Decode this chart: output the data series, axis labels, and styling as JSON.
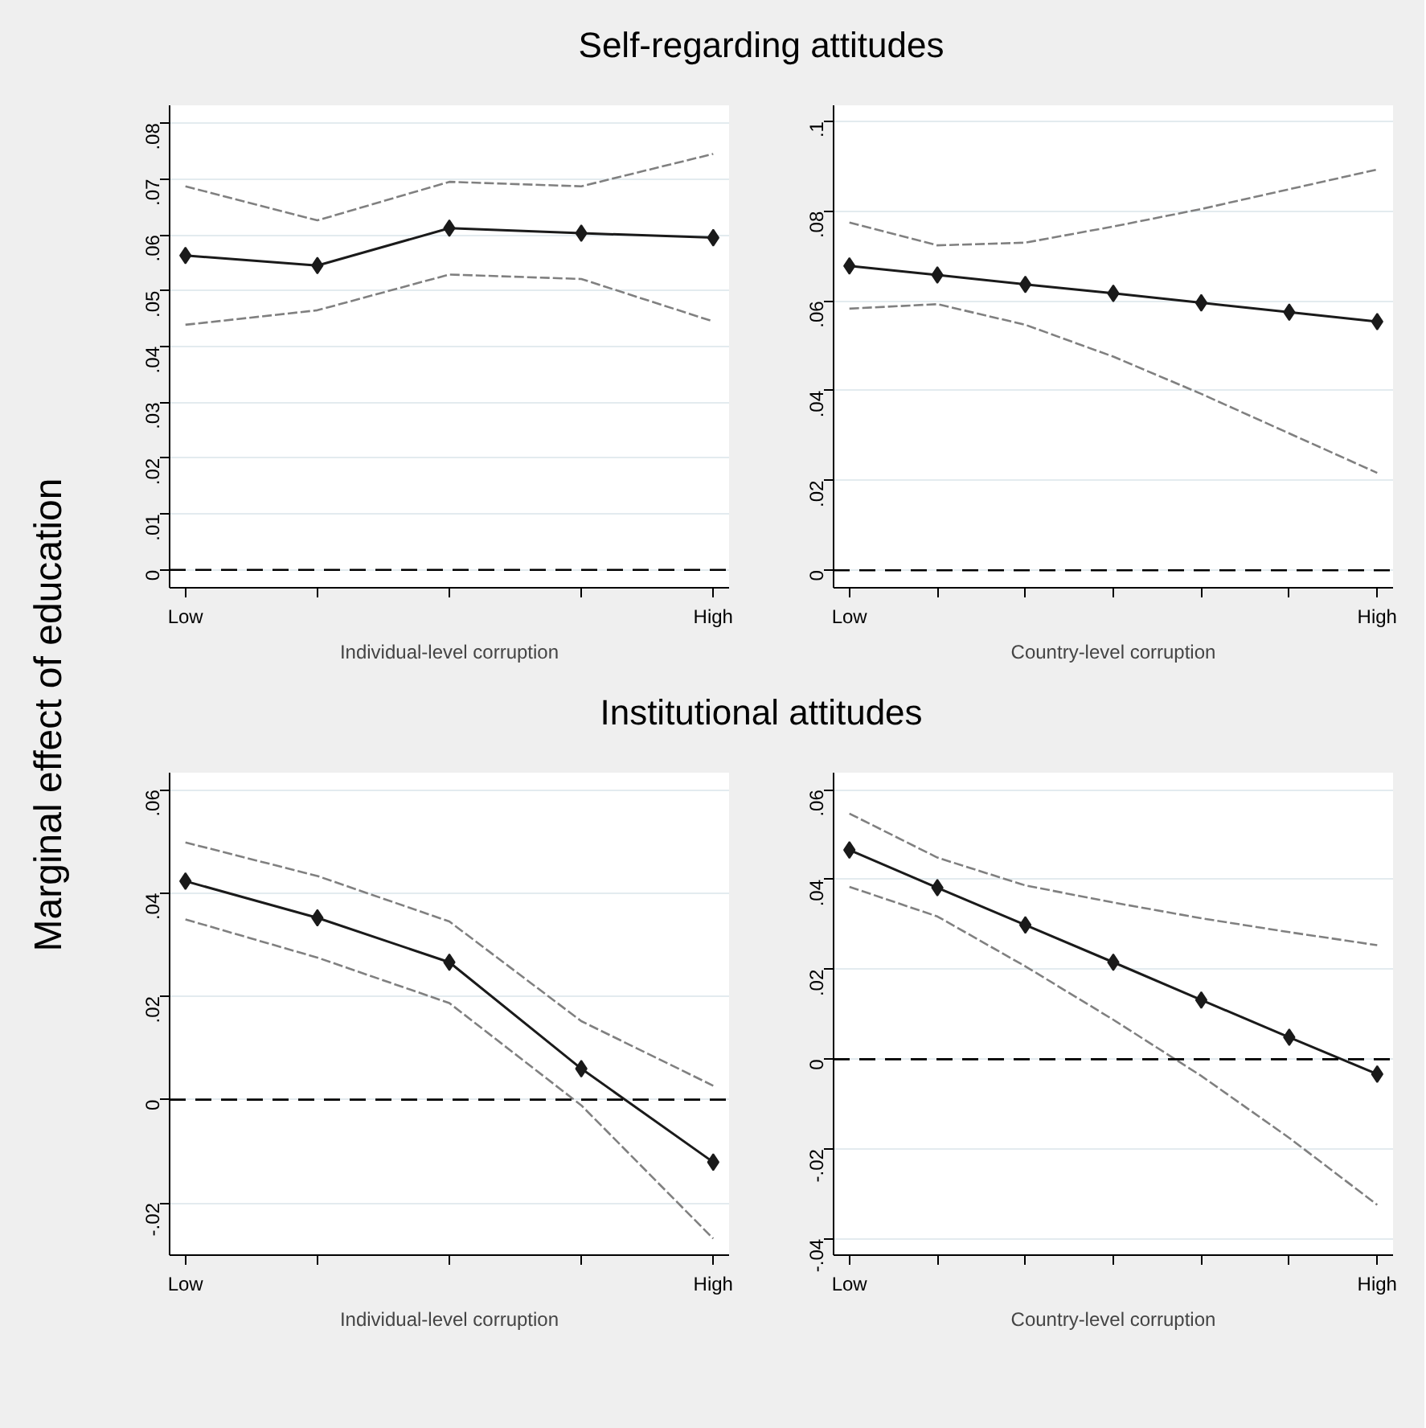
{
  "chart_data": [
    {
      "type": "line",
      "title": "Self-regarding attitudes",
      "ylabel": "Marginal effect of education",
      "xlabel": "Individual-level corruption",
      "categories": [
        "Low",
        null,
        null,
        null,
        "High"
      ],
      "series": [
        {
          "color": "#1a1a1a",
          "marker": "diamond",
          "line_style": "solid",
          "values": [
            0.0563,
            0.0545,
            0.0612,
            0.0603,
            0.0595
          ]
        },
        {
          "color": "#808080",
          "marker": "none",
          "line_style": "dashed",
          "values": [
            0.0687,
            0.0626,
            0.0695,
            0.0687,
            0.0745
          ]
        },
        {
          "color": "#808080",
          "marker": "none",
          "line_style": "dashed",
          "values": [
            0.0439,
            0.0465,
            0.0529,
            0.0521,
            0.0445
          ]
        }
      ],
      "ylim": [
        -0.0032,
        0.0832
      ],
      "yticks": [
        0,
        {
          "value": 0.01,
          "label": ".01"
        },
        {
          "value": 0.02,
          "label": ".02"
        },
        {
          "value": 0.03,
          "label": ".03"
        },
        {
          "value": 0.04,
          "label": ".04"
        },
        {
          "value": 0.05,
          "label": ".05"
        },
        {
          "value": 0.06,
          "label": ".06"
        },
        {
          "value": 0.07,
          "label": ".07"
        },
        {
          "value": 0.08,
          "label": ".08"
        }
      ],
      "ref_lines": [
        {
          "axis": "y",
          "value": 0,
          "color": "#000000",
          "line_style": "dashed"
        }
      ],
      "grid": "y"
    },
    {
      "type": "line",
      "xlabel": "Country-level corruption",
      "categories": [
        "Low",
        null,
        null,
        null,
        null,
        null,
        "High"
      ],
      "series": [
        {
          "color": "#1a1a1a",
          "marker": "diamond",
          "line_style": "solid",
          "values": [
            0.0678,
            0.0658,
            0.0637,
            0.0617,
            0.0596,
            0.0575,
            0.0554
          ]
        },
        {
          "color": "#808080",
          "marker": "none",
          "line_style": "dashed",
          "values": [
            0.0775,
            0.0724,
            0.073,
            0.0766,
            0.0805,
            0.0849,
            0.0893
          ]
        },
        {
          "color": "#808080",
          "marker": "none",
          "line_style": "dashed",
          "values": [
            0.0583,
            0.0593,
            0.0547,
            0.0476,
            0.0393,
            0.0305,
            0.0217
          ]
        }
      ],
      "ylim": [
        -0.0039,
        0.1036
      ],
      "yticks": [
        0,
        {
          "value": 0.02,
          "label": ".02"
        },
        {
          "value": 0.04,
          "label": ".04"
        },
        {
          "value": 0.06,
          "label": ".06"
        },
        {
          "value": 0.08,
          "label": ".08"
        },
        {
          "value": 0.1,
          "label": ".1"
        }
      ],
      "ref_lines": [
        {
          "axis": "y",
          "value": 0,
          "color": "#000000",
          "line_style": "dashed"
        }
      ],
      "grid": "y"
    },
    {
      "type": "line",
      "title": "Institutional attitudes",
      "xlabel": "Individual-level corruption",
      "categories": [
        "Low",
        null,
        null,
        null,
        "High"
      ],
      "series": [
        {
          "color": "#1a1a1a",
          "marker": "diamond",
          "line_style": "solid",
          "values": [
            0.0423,
            0.0352,
            0.0266,
            0.006,
            -0.0121
          ]
        },
        {
          "color": "#808080",
          "marker": "none",
          "line_style": "dashed",
          "values": [
            0.0498,
            0.0433,
            0.0345,
            0.0152,
            0.0027
          ]
        },
        {
          "color": "#808080",
          "marker": "none",
          "line_style": "dashed",
          "values": [
            0.0349,
            0.0275,
            0.0187,
            -0.0011,
            -0.0269
          ]
        }
      ],
      "ylim": [
        -0.0301,
        0.0633
      ],
      "yticks": [
        {
          "value": -0.02,
          "label": "-.02"
        },
        0,
        {
          "value": 0.02,
          "label": ".02"
        },
        {
          "value": 0.04,
          "label": ".04"
        },
        {
          "value": 0.06,
          "label": ".06"
        }
      ],
      "ref_lines": [
        {
          "axis": "y",
          "value": 0,
          "color": "#000000",
          "line_style": "dashed"
        }
      ],
      "grid": "y"
    },
    {
      "type": "line",
      "xlabel": "Country-level corruption",
      "categories": [
        "Low",
        null,
        null,
        null,
        null,
        null,
        "High"
      ],
      "series": [
        {
          "color": "#1a1a1a",
          "marker": "diamond",
          "line_style": "solid",
          "values": [
            0.0466,
            0.0382,
            0.0299,
            0.0216,
            0.0132,
            0.0049,
            -0.0033
          ]
        },
        {
          "color": "#808080",
          "marker": "none",
          "line_style": "dashed",
          "values": [
            0.0547,
            0.0449,
            0.0387,
            0.0349,
            0.0314,
            0.0283,
            0.0254
          ]
        },
        {
          "color": "#808080",
          "marker": "none",
          "line_style": "dashed",
          "values": [
            0.0384,
            0.0318,
            0.0207,
            0.0088,
            -0.0037,
            -0.0175,
            -0.0324
          ]
        }
      ],
      "ylim": [
        -0.0436,
        0.0638
      ],
      "yticks": [
        {
          "value": -0.04,
          "label": "-.04"
        },
        {
          "value": -0.02,
          "label": "-.02"
        },
        0,
        {
          "value": 0.02,
          "label": ".02"
        },
        {
          "value": 0.04,
          "label": ".04"
        },
        {
          "value": 0.06,
          "label": ".06"
        }
      ],
      "ref_lines": [
        {
          "axis": "y",
          "value": 0,
          "color": "#000000",
          "line_style": "dashed"
        }
      ],
      "grid": "y"
    }
  ]
}
